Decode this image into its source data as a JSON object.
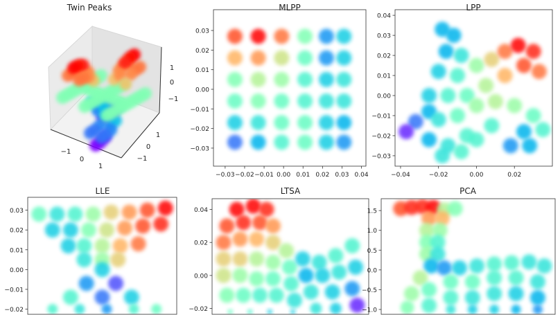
{
  "colormap": "rainbow",
  "chart_data": [
    {
      "id": "twinpeaks",
      "type": "scatter3d",
      "title": "Twin Peaks",
      "xticks": [
        "−1",
        "0",
        "1"
      ],
      "yticks": [
        "−1",
        "0",
        "1"
      ],
      "zticks": [
        "1",
        "0",
        "−1"
      ],
      "x": [
        -1,
        -0.75,
        -0.5,
        -0.25,
        0,
        0.25,
        0.5,
        0.75,
        1
      ],
      "y": [
        -1,
        -0.75,
        -0.5,
        -0.25,
        0,
        0.25,
        0.5,
        0.75,
        1
      ],
      "z": [
        [
          0,
          0.7,
          0.99,
          0.7,
          0,
          -0.7,
          -0.99,
          -0.7,
          0
        ],
        [
          0,
          0.69,
          0.98,
          0.69,
          0,
          -0.69,
          -0.98,
          -0.69,
          0
        ],
        [
          0,
          0.64,
          0.91,
          0.64,
          0,
          -0.64,
          -0.91,
          -0.64,
          0
        ],
        [
          0,
          0.45,
          0.64,
          0.45,
          0,
          -0.45,
          -0.64,
          -0.45,
          0
        ],
        [
          0,
          0,
          0,
          0,
          0,
          0,
          0,
          0,
          0
        ],
        [
          0,
          -0.45,
          -0.64,
          -0.45,
          0,
          0.45,
          0.64,
          0.45,
          0
        ],
        [
          0,
          -0.64,
          -0.91,
          -0.64,
          0,
          0.64,
          0.91,
          0.64,
          0
        ],
        [
          0,
          -0.69,
          -0.98,
          -0.69,
          0,
          0.69,
          0.98,
          0.69,
          0
        ],
        [
          0,
          -0.7,
          -0.99,
          -0.7,
          0,
          0.7,
          0.99,
          0.7,
          0
        ]
      ]
    },
    {
      "id": "mlpp",
      "type": "scatter",
      "title": "MLPP",
      "xlim": [
        -0.036,
        0.0423
      ],
      "ylim": [
        -0.0392,
        0.0406
      ],
      "xticks": [
        {
          "v": -0.03,
          "l": "−0.03"
        },
        {
          "v": -0.02,
          "l": "−0.02"
        },
        {
          "v": -0.01,
          "l": "−0.01"
        },
        {
          "v": 0,
          "l": "0.00"
        },
        {
          "v": 0.01,
          "l": "0.01"
        },
        {
          "v": 0.02,
          "l": "0.02"
        },
        {
          "v": 0.03,
          "l": "0.03"
        },
        {
          "v": 0.04,
          "l": "0.04"
        }
      ],
      "yticks": [
        {
          "v": 0.03,
          "l": "0.03"
        },
        {
          "v": 0.02,
          "l": "0.02"
        },
        {
          "v": 0.01,
          "l": "0.01"
        },
        {
          "v": 0,
          "l": "0.00"
        },
        {
          "v": -0.01,
          "l": "−0.01"
        },
        {
          "v": -0.02,
          "l": "−0.02"
        },
        {
          "v": -0.03,
          "l": "−0.03"
        }
      ],
      "points": [
        [
          -0.025,
          0.027,
          0.9
        ],
        [
          -0.013,
          0.027,
          1.0
        ],
        [
          -0.001,
          0.027,
          0.85
        ],
        [
          0.011,
          0.027,
          0.5
        ],
        [
          0.022,
          0.027,
          0.2
        ],
        [
          0.031,
          0.027,
          0.3
        ],
        [
          -0.025,
          0.016,
          0.75
        ],
        [
          -0.013,
          0.016,
          0.8
        ],
        [
          -0.001,
          0.016,
          0.65
        ],
        [
          0.011,
          0.016,
          0.45
        ],
        [
          0.022,
          0.016,
          0.2
        ],
        [
          0.031,
          0.016,
          0.3
        ],
        [
          -0.025,
          0.005,
          0.5
        ],
        [
          -0.013,
          0.005,
          0.6
        ],
        [
          -0.001,
          0.005,
          0.55
        ],
        [
          0.011,
          0.005,
          0.4
        ],
        [
          0.022,
          0.005,
          0.3
        ],
        [
          0.031,
          0.005,
          0.35
        ],
        [
          -0.025,
          -0.006,
          0.45
        ],
        [
          -0.013,
          -0.006,
          0.5
        ],
        [
          -0.001,
          -0.006,
          0.45
        ],
        [
          0.011,
          -0.006,
          0.4
        ],
        [
          0.022,
          -0.006,
          0.35
        ],
        [
          0.031,
          -0.006,
          0.35
        ],
        [
          -0.025,
          -0.017,
          0.3
        ],
        [
          -0.013,
          -0.017,
          0.35
        ],
        [
          -0.001,
          -0.017,
          0.45
        ],
        [
          0.011,
          -0.017,
          0.45
        ],
        [
          0.022,
          -0.017,
          0.3
        ],
        [
          0.031,
          -0.017,
          0.25
        ],
        [
          -0.025,
          -0.027,
          0.15
        ],
        [
          -0.013,
          -0.027,
          0.25
        ],
        [
          -0.001,
          -0.027,
          0.4
        ],
        [
          0.011,
          -0.027,
          0.45
        ],
        [
          0.022,
          -0.027,
          0.3
        ],
        [
          0.031,
          -0.027,
          0.2
        ]
      ]
    },
    {
      "id": "lpp",
      "type": "scatter",
      "title": "LPP",
      "xlim": [
        -0.0429,
        0.04
      ],
      "ylim": [
        -0.0352,
        0.0428
      ],
      "xticks": [
        {
          "v": -0.04,
          "l": "−0.04"
        },
        {
          "v": -0.02,
          "l": "−0.02"
        },
        {
          "v": 0,
          "l": "0.00"
        },
        {
          "v": 0.02,
          "l": "0.02"
        }
      ],
      "yticks": [
        {
          "v": 0.04,
          "l": "0.04"
        },
        {
          "v": 0.03,
          "l": "0.03"
        },
        {
          "v": 0.02,
          "l": "0.02"
        },
        {
          "v": 0.01,
          "l": "0.01"
        },
        {
          "v": 0,
          "l": "0.00"
        },
        {
          "v": -0.01,
          "l": "−0.01"
        },
        {
          "v": -0.02,
          "l": "−0.02"
        },
        {
          "v": -0.03,
          "l": "−0.03"
        }
      ],
      "points": [
        [
          -0.018,
          0.033,
          0.25
        ],
        [
          -0.012,
          0.03,
          0.25
        ],
        [
          -0.016,
          0.022,
          0.25
        ],
        [
          -0.008,
          0.02,
          0.35
        ],
        [
          -0.02,
          0.012,
          0.3
        ],
        [
          -0.01,
          0.01,
          0.4
        ],
        [
          0.0,
          0.015,
          0.55
        ],
        [
          0.008,
          0.018,
          0.7
        ],
        [
          0.015,
          0.022,
          0.85
        ],
        [
          0.022,
          0.025,
          1.0
        ],
        [
          0.03,
          0.022,
          0.95
        ],
        [
          0.025,
          0.015,
          0.9
        ],
        [
          0.033,
          0.012,
          0.85
        ],
        [
          0.015,
          0.01,
          0.75
        ],
        [
          0.005,
          0.005,
          0.6
        ],
        [
          -0.005,
          0.0,
          0.45
        ],
        [
          -0.015,
          0.0,
          0.4
        ],
        [
          -0.025,
          0.0,
          0.3
        ],
        [
          -0.025,
          -0.008,
          0.25
        ],
        [
          -0.032,
          -0.013,
          0.15
        ],
        [
          -0.037,
          -0.018,
          0.05
        ],
        [
          -0.02,
          -0.012,
          0.35
        ],
        [
          -0.01,
          -0.01,
          0.45
        ],
        [
          0.0,
          -0.005,
          0.55
        ],
        [
          0.01,
          -0.003,
          0.6
        ],
        [
          0.02,
          -0.005,
          0.55
        ],
        [
          0.03,
          -0.01,
          0.45
        ],
        [
          0.035,
          -0.017,
          0.4
        ],
        [
          0.025,
          -0.018,
          0.25
        ],
        [
          0.018,
          -0.025,
          0.2
        ],
        [
          0.028,
          -0.025,
          0.25
        ],
        [
          0.008,
          -0.015,
          0.4
        ],
        [
          -0.005,
          -0.02,
          0.4
        ],
        [
          -0.015,
          -0.025,
          0.35
        ],
        [
          -0.025,
          -0.022,
          0.25
        ],
        [
          -0.018,
          -0.03,
          0.35
        ],
        [
          -0.008,
          -0.028,
          0.4
        ],
        [
          0.0,
          -0.022,
          0.4
        ]
      ]
    },
    {
      "id": "lle",
      "type": "scatter",
      "title": "LLE",
      "xlim": [
        -0.033,
        0.033
      ],
      "ylim": [
        -0.0429,
        0.0365
      ],
      "xticks": [],
      "yticks": [
        {
          "v": 0.03,
          "l": "0.03"
        },
        {
          "v": 0.02,
          "l": "0.02"
        },
        {
          "v": 0.01,
          "l": "0.01"
        },
        {
          "v": 0,
          "l": "0.00"
        },
        {
          "v": -0.01,
          "l": "−0.01"
        },
        {
          "v": -0.02,
          "l": "−0.02"
        }
      ],
      "points": [
        [
          -0.028,
          0.028,
          0.45
        ],
        [
          -0.02,
          0.028,
          0.35
        ],
        [
          -0.012,
          0.028,
          0.4
        ],
        [
          -0.004,
          0.028,
          0.55
        ],
        [
          0.004,
          0.029,
          0.7
        ],
        [
          0.012,
          0.029,
          0.8
        ],
        [
          0.02,
          0.03,
          0.9
        ],
        [
          0.028,
          0.031,
          1.0
        ],
        [
          -0.022,
          0.02,
          0.3
        ],
        [
          -0.014,
          0.02,
          0.3
        ],
        [
          -0.006,
          0.02,
          0.5
        ],
        [
          0.002,
          0.02,
          0.65
        ],
        [
          0.01,
          0.021,
          0.8
        ],
        [
          0.018,
          0.022,
          0.9
        ],
        [
          0.026,
          0.023,
          0.95
        ],
        [
          -0.015,
          0.012,
          0.3
        ],
        [
          -0.008,
          0.012,
          0.4
        ],
        [
          0.0,
          0.012,
          0.6
        ],
        [
          0.008,
          0.012,
          0.75
        ],
        [
          0.016,
          0.013,
          0.85
        ],
        [
          -0.008,
          0.005,
          0.35
        ],
        [
          0.0,
          0.005,
          0.55
        ],
        [
          0.007,
          0.005,
          0.7
        ],
        [
          0.0,
          0.0,
          0.3
        ],
        [
          -0.007,
          -0.007,
          0.2
        ],
        [
          0.006,
          -0.007,
          0.1
        ],
        [
          -0.014,
          -0.014,
          0.4
        ],
        [
          0.0,
          -0.014,
          0.15
        ],
        [
          0.013,
          -0.014,
          0.3
        ],
        [
          -0.022,
          -0.02,
          0.4
        ],
        [
          -0.01,
          -0.02,
          0.35
        ],
        [
          0.002,
          -0.02,
          0.2
        ],
        [
          0.014,
          -0.02,
          0.4
        ],
        [
          0.024,
          -0.02,
          0.45
        ]
      ]
    },
    {
      "id": "ltsa",
      "type": "scatter",
      "title": "LTSA",
      "xlim": [
        -0.045,
        0.05
      ],
      "ylim": [
        -0.0512,
        0.0465
      ],
      "xticks": [],
      "yticks": [
        {
          "v": 0.04,
          "l": "0.04"
        },
        {
          "v": 0.02,
          "l": "0.02"
        },
        {
          "v": 0,
          "l": "0.00"
        },
        {
          "v": -0.02,
          "l": "−0.02"
        }
      ],
      "points": [
        [
          -0.03,
          0.04,
          1.0
        ],
        [
          -0.02,
          0.042,
          1.0
        ],
        [
          -0.012,
          0.04,
          0.95
        ],
        [
          -0.036,
          0.03,
          0.9
        ],
        [
          -0.026,
          0.032,
          0.95
        ],
        [
          -0.016,
          0.032,
          0.9
        ],
        [
          -0.008,
          0.03,
          0.8
        ],
        [
          -0.038,
          0.02,
          0.85
        ],
        [
          -0.028,
          0.022,
          0.8
        ],
        [
          -0.018,
          0.022,
          0.75
        ],
        [
          -0.008,
          0.02,
          0.7
        ],
        [
          0.0,
          0.015,
          0.6
        ],
        [
          -0.038,
          0.01,
          0.7
        ],
        [
          -0.028,
          0.01,
          0.7
        ],
        [
          -0.018,
          0.01,
          0.6
        ],
        [
          -0.008,
          0.008,
          0.55
        ],
        [
          0.002,
          0.005,
          0.45
        ],
        [
          -0.038,
          0.0,
          0.65
        ],
        [
          -0.028,
          0.0,
          0.55
        ],
        [
          -0.018,
          -0.002,
          0.5
        ],
        [
          -0.008,
          -0.002,
          0.45
        ],
        [
          0.003,
          -0.005,
          0.4
        ],
        [
          -0.036,
          -0.012,
          0.5
        ],
        [
          -0.026,
          -0.012,
          0.45
        ],
        [
          -0.016,
          -0.012,
          0.4
        ],
        [
          -0.006,
          -0.012,
          0.4
        ],
        [
          0.005,
          -0.015,
          0.35
        ],
        [
          -0.034,
          -0.022,
          0.45
        ],
        [
          -0.022,
          -0.022,
          0.4
        ],
        [
          -0.01,
          -0.022,
          0.3
        ],
        [
          0.004,
          -0.022,
          0.3
        ],
        [
          0.01,
          0.01,
          0.3
        ],
        [
          0.02,
          0.008,
          0.35
        ],
        [
          0.03,
          0.012,
          0.4
        ],
        [
          0.04,
          0.018,
          0.4
        ],
        [
          0.012,
          0.0,
          0.25
        ],
        [
          0.022,
          0.0,
          0.3
        ],
        [
          0.032,
          0.002,
          0.35
        ],
        [
          0.042,
          0.005,
          0.3
        ],
        [
          0.015,
          -0.01,
          0.35
        ],
        [
          0.028,
          -0.01,
          0.3
        ],
        [
          0.04,
          -0.008,
          0.2
        ],
        [
          0.043,
          -0.018,
          0.05
        ],
        [
          0.03,
          -0.02,
          0.3
        ],
        [
          0.018,
          -0.02,
          0.35
        ]
      ]
    },
    {
      "id": "pca",
      "type": "scatter",
      "title": "PCA",
      "xlim": [
        -2,
        2
      ],
      "ylim": [
        -1.945,
        1.8
      ],
      "xticks": [],
      "yticks": [
        {
          "v": 1.5,
          "l": "1.5"
        },
        {
          "v": 1.0,
          "l": "1.0"
        },
        {
          "v": 0.5,
          "l": "0.5"
        },
        {
          "v": 0,
          "l": "0.0"
        },
        {
          "v": -0.5,
          "l": "−0.5"
        },
        {
          "v": -1.0,
          "l": "−1.0"
        }
      ],
      "points": [
        [
          -1.55,
          1.55,
          0.9
        ],
        [
          -1.3,
          1.58,
          0.95
        ],
        [
          -1.05,
          1.6,
          0.95
        ],
        [
          -0.8,
          1.58,
          1.0
        ],
        [
          -0.55,
          1.52,
          0.6
        ],
        [
          -0.3,
          1.55,
          0.5
        ],
        [
          -0.9,
          1.3,
          0.8
        ],
        [
          -0.6,
          1.3,
          0.75
        ],
        [
          -0.95,
          1.0,
          0.6
        ],
        [
          -0.65,
          1.0,
          0.55
        ],
        [
          -0.95,
          0.7,
          0.5
        ],
        [
          -0.7,
          0.7,
          0.4
        ],
        [
          -0.95,
          0.4,
          0.55
        ],
        [
          -0.7,
          0.4,
          0.35
        ],
        [
          -0.85,
          0.1,
          0.25
        ],
        [
          -0.55,
          0.05,
          0.2
        ],
        [
          -0.2,
          0.05,
          0.3
        ],
        [
          0.2,
          0.1,
          0.35
        ],
        [
          0.6,
          0.15,
          0.4
        ],
        [
          1.0,
          0.18,
          0.4
        ],
        [
          1.4,
          0.2,
          0.35
        ],
        [
          1.75,
          0.1,
          0.35
        ],
        [
          -1.1,
          -0.2,
          0.6
        ],
        [
          -1.3,
          -0.6,
          0.55
        ],
        [
          -1.4,
          -0.95,
          0.5
        ],
        [
          -0.9,
          -0.5,
          0.45
        ],
        [
          -0.9,
          -0.9,
          0.4
        ],
        [
          -0.4,
          -0.3,
          0.45
        ],
        [
          -0.4,
          -0.7,
          0.4
        ],
        [
          -0.4,
          -1.0,
          0.35
        ],
        [
          0.1,
          -0.3,
          0.45
        ],
        [
          0.1,
          -0.7,
          0.35
        ],
        [
          0.1,
          -1.0,
          0.3
        ],
        [
          0.6,
          -0.2,
          0.4
        ],
        [
          0.6,
          -0.6,
          0.35
        ],
        [
          0.6,
          -1.0,
          0.3
        ],
        [
          1.1,
          -0.2,
          0.4
        ],
        [
          1.1,
          -0.6,
          0.3
        ],
        [
          1.1,
          -1.0,
          0.25
        ],
        [
          1.6,
          -0.3,
          0.35
        ],
        [
          1.6,
          -0.7,
          0.25
        ],
        [
          1.6,
          -1.0,
          0.2
        ]
      ]
    }
  ]
}
